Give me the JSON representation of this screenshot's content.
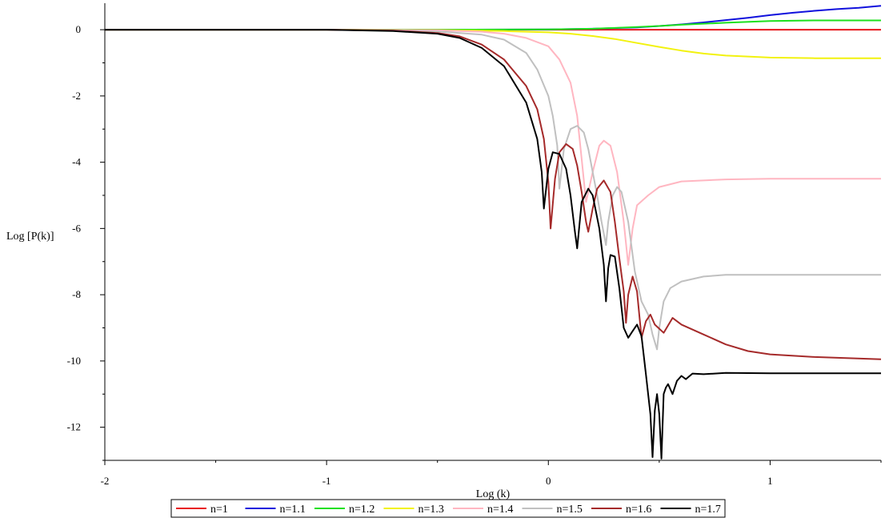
{
  "chart_data": {
    "type": "line",
    "xlabel": "Log (k)",
    "ylabel": "Log [P(k)]",
    "xlim": [
      -2,
      1.5
    ],
    "ylim": [
      -13,
      0.8
    ],
    "xticks": [
      -2,
      -1,
      0,
      1
    ],
    "xtick_labels": [
      "-2",
      "-1",
      "0",
      "1"
    ],
    "yticks": [
      -12,
      -10,
      -8,
      -6,
      -4,
      -2,
      0
    ],
    "ytick_labels": [
      "-12",
      "-10",
      "-8",
      "-6",
      "-4",
      "-2",
      "0"
    ],
    "grid": false,
    "legend_position": "bottom",
    "series": [
      {
        "name": "n=1",
        "color": "#e8151b",
        "x": [
          -2,
          1.5
        ],
        "y": [
          0,
          0
        ]
      },
      {
        "name": "n=1.1",
        "color": "#1111dd",
        "x": [
          -2,
          -1,
          -0.5,
          0,
          0.2,
          0.4,
          0.5,
          0.6,
          0.7,
          0.8,
          0.9,
          1.0,
          1.1,
          1.2,
          1.3,
          1.4,
          1.5
        ],
        "y": [
          0,
          0,
          0,
          0.01,
          0.03,
          0.07,
          0.11,
          0.16,
          0.22,
          0.29,
          0.36,
          0.44,
          0.51,
          0.57,
          0.62,
          0.66,
          0.72
        ]
      },
      {
        "name": "n=1.2",
        "color": "#1de01d",
        "x": [
          -2,
          -1,
          -0.5,
          0,
          0.2,
          0.4,
          0.5,
          0.6,
          0.8,
          1.0,
          1.2,
          1.5
        ],
        "y": [
          0,
          0,
          0,
          0.01,
          0.03,
          0.08,
          0.11,
          0.15,
          0.21,
          0.26,
          0.28,
          0.28
        ]
      },
      {
        "name": "n=1.3",
        "color": "#f2f20f",
        "x": [
          -2,
          -1,
          -0.5,
          -0.2,
          0,
          0.1,
          0.2,
          0.3,
          0.4,
          0.5,
          0.6,
          0.7,
          0.8,
          1.0,
          1.2,
          1.5
        ],
        "y": [
          0,
          0,
          -0.01,
          -0.04,
          -0.08,
          -0.12,
          -0.19,
          -0.28,
          -0.4,
          -0.52,
          -0.63,
          -0.72,
          -0.78,
          -0.84,
          -0.86,
          -0.86
        ]
      },
      {
        "name": "n=1.4",
        "color": "#ffb6c1",
        "x": [
          -2,
          -1,
          -0.5,
          -0.3,
          -0.2,
          -0.1,
          0,
          0.05,
          0.1,
          0.13,
          0.15,
          0.17,
          0.2,
          0.23,
          0.25,
          0.28,
          0.31,
          0.34,
          0.36,
          0.38,
          0.4,
          0.45,
          0.5,
          0.6,
          0.8,
          1.0,
          1.5
        ],
        "y": [
          0,
          0,
          -0.02,
          -0.06,
          -0.12,
          -0.25,
          -0.5,
          -0.9,
          -1.6,
          -2.6,
          -3.9,
          -5.2,
          -4.3,
          -3.5,
          -3.35,
          -3.5,
          -4.3,
          -5.8,
          -7.1,
          -6.0,
          -5.3,
          -5.0,
          -4.75,
          -4.58,
          -4.52,
          -4.5,
          -4.5
        ]
      },
      {
        "name": "n=1.5",
        "color": "#c0c0c0",
        "x": [
          -2,
          -1,
          -0.5,
          -0.3,
          -0.2,
          -0.1,
          -0.05,
          0,
          0.02,
          0.04,
          0.05,
          0.07,
          0.1,
          0.13,
          0.16,
          0.18,
          0.2,
          0.22,
          0.24,
          0.26,
          0.27,
          0.29,
          0.31,
          0.33,
          0.36,
          0.39,
          0.42,
          0.45,
          0.47,
          0.49,
          0.5,
          0.52,
          0.55,
          0.6,
          0.7,
          0.8,
          1.0,
          1.5
        ],
        "y": [
          0,
          0,
          -0.05,
          -0.15,
          -0.3,
          -0.7,
          -1.2,
          -2.0,
          -2.6,
          -3.5,
          -4.8,
          -3.6,
          -3.0,
          -2.9,
          -3.1,
          -3.6,
          -4.3,
          -5.0,
          -5.8,
          -6.5,
          -5.8,
          -5.0,
          -4.75,
          -4.9,
          -5.8,
          -7.3,
          -8.2,
          -8.6,
          -9.2,
          -9.65,
          -9.0,
          -8.2,
          -7.8,
          -7.6,
          -7.45,
          -7.4,
          -7.4,
          -7.4
        ]
      },
      {
        "name": "n=1.6",
        "color": "#a52a2a",
        "x": [
          -2,
          -1,
          -0.7,
          -0.5,
          -0.4,
          -0.3,
          -0.2,
          -0.1,
          -0.05,
          -0.02,
          0,
          0.01,
          0.03,
          0.05,
          0.08,
          0.11,
          0.13,
          0.15,
          0.17,
          0.18,
          0.2,
          0.22,
          0.25,
          0.28,
          0.3,
          0.32,
          0.34,
          0.35,
          0.36,
          0.38,
          0.4,
          0.42,
          0.44,
          0.46,
          0.48,
          0.52,
          0.56,
          0.6,
          0.7,
          0.8,
          0.9,
          1.0,
          1.2,
          1.5
        ],
        "y": [
          0,
          0,
          -0.03,
          -0.1,
          -0.2,
          -0.45,
          -0.9,
          -1.7,
          -2.4,
          -3.3,
          -4.6,
          -6.0,
          -4.5,
          -3.7,
          -3.45,
          -3.6,
          -4.1,
          -4.9,
          -5.8,
          -6.1,
          -5.4,
          -4.8,
          -4.55,
          -4.9,
          -5.8,
          -6.9,
          -7.9,
          -8.85,
          -8.0,
          -7.45,
          -7.9,
          -9.3,
          -8.8,
          -8.6,
          -8.9,
          -9.15,
          -8.7,
          -8.9,
          -9.2,
          -9.5,
          -9.7,
          -9.8,
          -9.88,
          -9.95
        ]
      },
      {
        "name": "n=1.7",
        "color": "#000000",
        "x": [
          -2,
          -1,
          -0.7,
          -0.5,
          -0.4,
          -0.3,
          -0.2,
          -0.1,
          -0.05,
          -0.03,
          -0.02,
          0,
          0.02,
          0.05,
          0.08,
          0.1,
          0.12,
          0.13,
          0.15,
          0.18,
          0.2,
          0.23,
          0.25,
          0.26,
          0.27,
          0.28,
          0.3,
          0.32,
          0.34,
          0.36,
          0.38,
          0.4,
          0.42,
          0.44,
          0.46,
          0.47,
          0.48,
          0.49,
          0.5,
          0.51,
          0.52,
          0.53,
          0.54,
          0.56,
          0.58,
          0.6,
          0.62,
          0.65,
          0.7,
          0.8,
          1.0,
          1.5
        ],
        "y": [
          0,
          0,
          -0.04,
          -0.12,
          -0.25,
          -0.55,
          -1.1,
          -2.2,
          -3.3,
          -4.3,
          -5.4,
          -4.2,
          -3.7,
          -3.75,
          -4.2,
          -5.0,
          -6.1,
          -6.6,
          -5.2,
          -4.8,
          -5.0,
          -6.0,
          -7.1,
          -8.2,
          -7.2,
          -6.8,
          -6.85,
          -7.8,
          -9.0,
          -9.3,
          -9.1,
          -8.9,
          -9.25,
          -10.4,
          -11.6,
          -12.9,
          -11.5,
          -11.0,
          -11.6,
          -12.95,
          -11.0,
          -10.8,
          -10.7,
          -11.0,
          -10.6,
          -10.45,
          -10.55,
          -10.38,
          -10.4,
          -10.36,
          -10.37,
          -10.37
        ]
      }
    ]
  }
}
